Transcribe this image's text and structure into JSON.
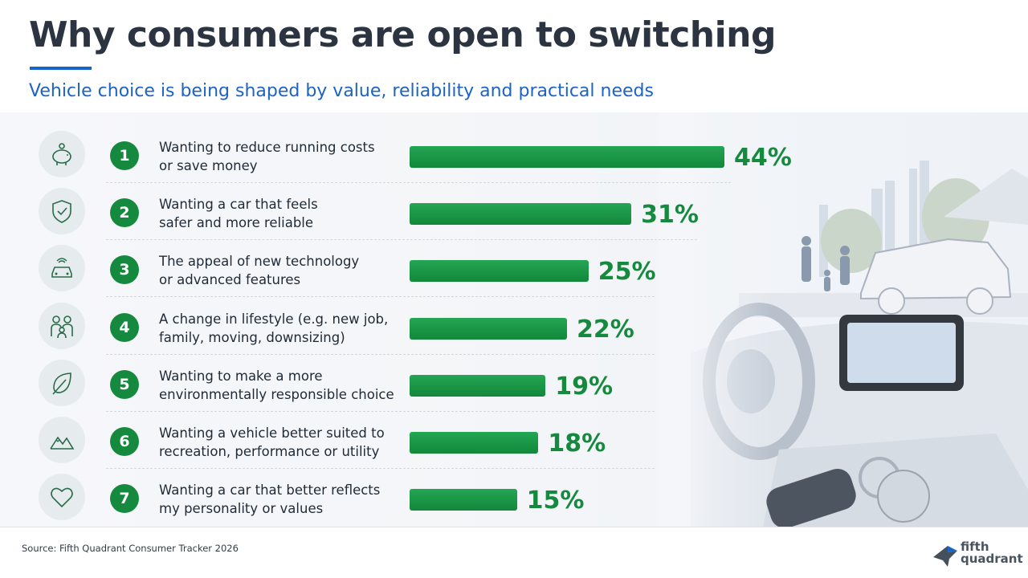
{
  "title": "Why consumers are open to switching",
  "subtitle": "Vehicle choice is being shaped by value, reliability and practical needs",
  "source": "Source: Fifth Quadrant Consumer Tracker 2026",
  "logo": {
    "text": "fifth\nquadrant"
  },
  "colors": {
    "title": "#2b3440",
    "accent_blue": "#1665c9",
    "bar_green": "#158a3f"
  },
  "icons": [
    "piggy-bank-icon",
    "shield-check-icon",
    "connected-car-icon",
    "family-icon",
    "leaf-icon",
    "mountains-icon",
    "heart-icon"
  ],
  "chart_data": {
    "type": "bar",
    "orientation": "horizontal",
    "value_unit": "%",
    "categories": [
      "Wanting to reduce running costs\nor save money",
      "Wanting a car that feels\nsafer and more reliable",
      "The appeal of new technology\nor advanced features",
      "A change in lifestyle (e.g. new job,\nfamily, moving, downsizing)",
      "Wanting to make a more\nenvironmentally responsible choice",
      "Wanting a vehicle better suited to\nrecreation, performance or utility",
      "Wanting a car that better reflects\nmy personality or values"
    ],
    "rank_labels": [
      "1",
      "2",
      "3",
      "4",
      "5",
      "6",
      "7"
    ],
    "values": [
      44,
      31,
      25,
      22,
      19,
      18,
      15
    ],
    "data_labels": [
      "44%",
      "31%",
      "25%",
      "22%",
      "19%",
      "18%",
      "15%"
    ],
    "xlim": [
      0,
      44
    ]
  }
}
